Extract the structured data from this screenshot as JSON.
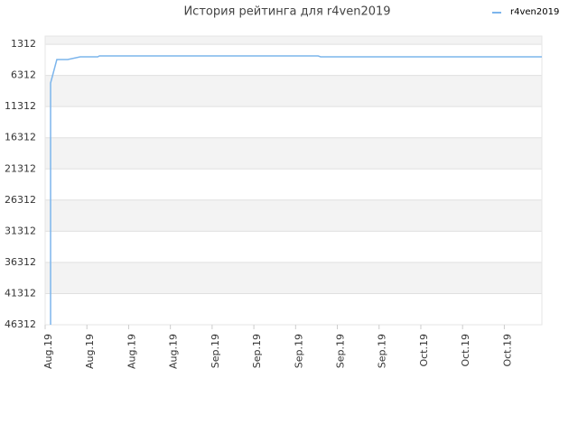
{
  "chart_data": {
    "type": "line",
    "title": "История рейтинга для r4ven2019",
    "series": [
      {
        "name": "r4ven2019",
        "color": "#7cb5ec",
        "x": [
          0.13,
          0.13,
          0.28,
          0.54,
          0.84,
          1.26,
          1.3,
          6.54,
          6.6,
          11.9
        ],
        "values": [
          46312,
          7526,
          3763,
          3763,
          3330,
          3330,
          3184,
          3184,
          3330,
          3330
        ]
      }
    ],
    "xlim": [
      0,
      11.9
    ],
    "xticks": [
      {
        "value": 0,
        "label": "Aug.19"
      },
      {
        "value": 1,
        "label": "Aug.19"
      },
      {
        "value": 2,
        "label": "Aug.19"
      },
      {
        "value": 3,
        "label": "Aug.19"
      },
      {
        "value": 4,
        "label": "Sep.19"
      },
      {
        "value": 5,
        "label": "Sep.19"
      },
      {
        "value": 6,
        "label": "Sep.19"
      },
      {
        "value": 7,
        "label": "Sep.19"
      },
      {
        "value": 8,
        "label": "Sep.19"
      },
      {
        "value": 9,
        "label": "Oct.19"
      },
      {
        "value": 10,
        "label": "Oct.19"
      },
      {
        "value": 11,
        "label": "Oct.19"
      }
    ],
    "ylim": [
      46312,
      0
    ],
    "yticks": [
      1312,
      6312,
      11312,
      16312,
      21312,
      26312,
      31312,
      36312,
      41312,
      46312
    ],
    "grid": true,
    "legend": "top-right"
  }
}
